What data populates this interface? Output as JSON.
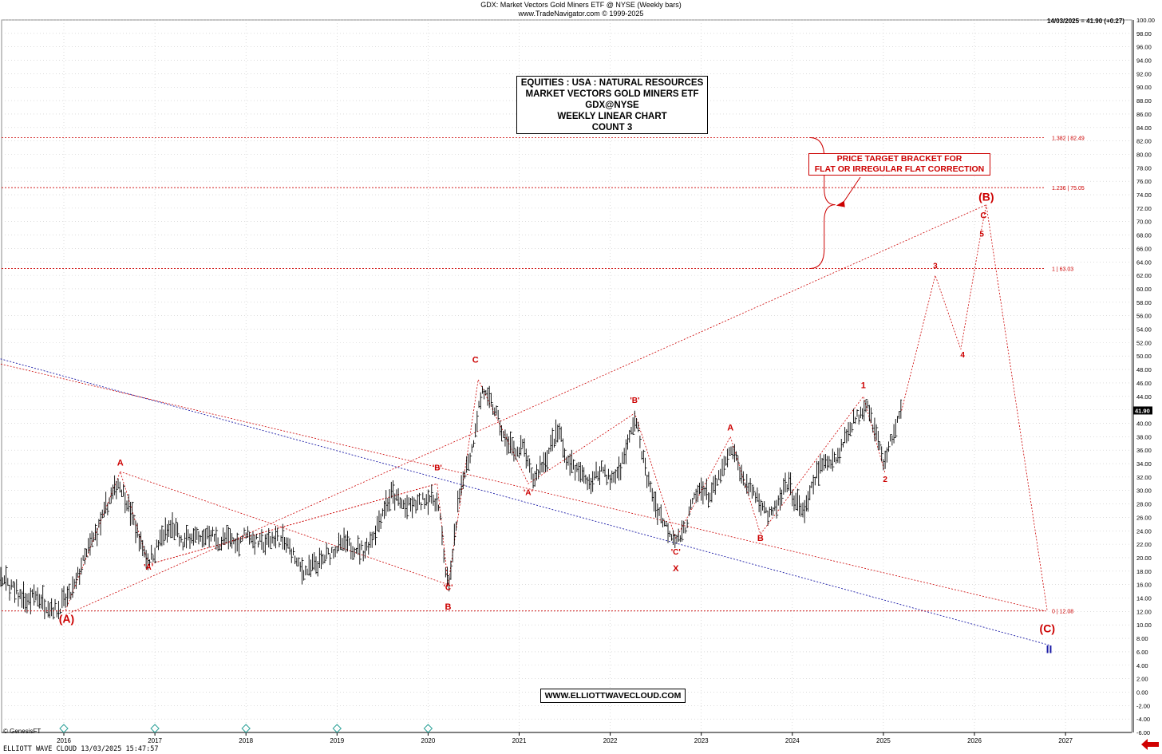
{
  "header": {
    "title": "GDX:  Market Vectors Gold Miners ETF @ NYSE  (Weekly bars)",
    "subtitle": "www.TradeNavigator.com © 1999-2025",
    "last_quote": "14/03/2025 = 41.90 (+0.27)"
  },
  "info_box": {
    "line1": "EQUITIES : USA : NATURAL RESOURCES",
    "line2": "MARKET VECTORS GOLD MINERS ETF",
    "line3": "GDX@NYSE",
    "line4": "WEEKLY LINEAR CHART",
    "line5": "COUNT 3"
  },
  "target_box": {
    "line1": "PRICE TARGET BRACKET FOR",
    "line2": "FLAT OR IRREGULAR FLAT CORRECTION"
  },
  "url_box": "WWW.ELLIOTTWAVECLOUD.COM",
  "footer": "ELLIOTT WAVE CLOUD   13/03/2025 15:47:57",
  "genesis": "© GenesisFT",
  "colors": {
    "red": "#cc0000",
    "blue": "#1a1aa6",
    "bars": "#000000",
    "grid": "#c8c8c8"
  },
  "chart_data": {
    "type": "ohlc",
    "yrange": [
      -6,
      100
    ],
    "yticks": [
      "100.00",
      "98.00",
      "96.00",
      "94.00",
      "92.00",
      "90.00",
      "88.00",
      "86.00",
      "84.00",
      "82.00",
      "80.00",
      "78.00",
      "76.00",
      "74.00",
      "72.00",
      "70.00",
      "68.00",
      "66.00",
      "64.00",
      "62.00",
      "60.00",
      "58.00",
      "56.00",
      "54.00",
      "52.00",
      "50.00",
      "48.00",
      "46.00",
      "44.00",
      "42.00",
      "40.00",
      "38.00",
      "36.00",
      "34.00",
      "32.00",
      "30.00",
      "28.00",
      "26.00",
      "24.00",
      "22.00",
      "20.00",
      "18.00",
      "16.00",
      "14.00",
      "12.00",
      "10.00",
      "8.00",
      "6.00",
      "4.00",
      "2.00",
      "0.00",
      "-2.00",
      "-4.00",
      "-6.00"
    ],
    "xticks": [
      "2016",
      "2017",
      "2018",
      "2019",
      "2020",
      "2021",
      "2022",
      "2023",
      "2024",
      "2025",
      "2026",
      "2027"
    ],
    "last_price_label": "41.90",
    "last_price": 41.9,
    "price_path": [
      [
        2015.0,
        20.5
      ],
      [
        2015.15,
        19.0
      ],
      [
        2015.35,
        16.5
      ],
      [
        2015.6,
        13.2
      ],
      [
        2015.7,
        14.5
      ],
      [
        2015.8,
        13.0
      ],
      [
        2015.93,
        12.2
      ],
      [
        2016.0,
        13.5
      ],
      [
        2016.1,
        15.0
      ],
      [
        2016.2,
        19.0
      ],
      [
        2016.3,
        22.0
      ],
      [
        2016.4,
        25.0
      ],
      [
        2016.5,
        28.5
      ],
      [
        2016.6,
        31.3
      ],
      [
        2016.68,
        29.0
      ],
      [
        2016.75,
        26.0
      ],
      [
        2016.85,
        22.0
      ],
      [
        2016.93,
        19.5
      ],
      [
        2017.0,
        21.0
      ],
      [
        2017.1,
        23.5
      ],
      [
        2017.2,
        24.5
      ],
      [
        2017.3,
        22.0
      ],
      [
        2017.4,
        23.5
      ],
      [
        2017.5,
        22.5
      ],
      [
        2017.6,
        24.0
      ],
      [
        2017.7,
        22.0
      ],
      [
        2017.8,
        23.0
      ],
      [
        2017.9,
        22.0
      ],
      [
        2018.0,
        23.8
      ],
      [
        2018.1,
        22.5
      ],
      [
        2018.2,
        22.0
      ],
      [
        2018.3,
        23.0
      ],
      [
        2018.4,
        22.5
      ],
      [
        2018.5,
        21.0
      ],
      [
        2018.58,
        18.5
      ],
      [
        2018.65,
        18.0
      ],
      [
        2018.8,
        19.0
      ],
      [
        2018.95,
        21.0
      ],
      [
        2019.05,
        22.0
      ],
      [
        2019.2,
        21.5
      ],
      [
        2019.3,
        21.0
      ],
      [
        2019.4,
        23.5
      ],
      [
        2019.5,
        27.0
      ],
      [
        2019.6,
        29.5
      ],
      [
        2019.7,
        28.0
      ],
      [
        2019.8,
        27.5
      ],
      [
        2019.9,
        28.0
      ],
      [
        2020.0,
        29.0
      ],
      [
        2020.1,
        28.5
      ],
      [
        2020.15,
        24.0
      ],
      [
        2020.2,
        17.0
      ],
      [
        2020.23,
        16.2
      ],
      [
        2020.27,
        20.0
      ],
      [
        2020.32,
        27.0
      ],
      [
        2020.4,
        33.0
      ],
      [
        2020.48,
        36.0
      ],
      [
        2020.55,
        42.0
      ],
      [
        2020.6,
        45.0
      ],
      [
        2020.68,
        43.0
      ],
      [
        2020.75,
        41.5
      ],
      [
        2020.82,
        38.0
      ],
      [
        2020.9,
        36.5
      ],
      [
        2021.0,
        35.5
      ],
      [
        2021.05,
        36.8
      ],
      [
        2021.1,
        33.5
      ],
      [
        2021.15,
        31.5
      ],
      [
        2021.2,
        32.5
      ],
      [
        2021.3,
        35.0
      ],
      [
        2021.38,
        37.5
      ],
      [
        2021.45,
        38.8
      ],
      [
        2021.5,
        35.0
      ],
      [
        2021.6,
        33.5
      ],
      [
        2021.7,
        32.0
      ],
      [
        2021.8,
        31.0
      ],
      [
        2021.9,
        33.5
      ],
      [
        2022.0,
        31.5
      ],
      [
        2022.1,
        33.0
      ],
      [
        2022.2,
        37.0
      ],
      [
        2022.27,
        40.8
      ],
      [
        2022.32,
        38.0
      ],
      [
        2022.4,
        32.0
      ],
      [
        2022.5,
        28.0
      ],
      [
        2022.6,
        25.0
      ],
      [
        2022.7,
        23.0
      ],
      [
        2022.75,
        22.8
      ],
      [
        2022.82,
        24.5
      ],
      [
        2022.9,
        28.0
      ],
      [
        2023.0,
        30.5
      ],
      [
        2023.1,
        29.0
      ],
      [
        2023.2,
        32.0
      ],
      [
        2023.3,
        35.0
      ],
      [
        2023.35,
        36.0
      ],
      [
        2023.45,
        32.0
      ],
      [
        2023.55,
        30.0
      ],
      [
        2023.65,
        28.5
      ],
      [
        2023.75,
        26.0
      ],
      [
        2023.85,
        28.0
      ],
      [
        2023.95,
        31.0
      ],
      [
        2024.05,
        28.0
      ],
      [
        2024.15,
        27.0
      ],
      [
        2024.22,
        30.5
      ],
      [
        2024.3,
        33.5
      ],
      [
        2024.4,
        34.5
      ],
      [
        2024.5,
        35.0
      ],
      [
        2024.6,
        38.5
      ],
      [
        2024.65,
        40.0
      ],
      [
        2024.72,
        41.0
      ],
      [
        2024.78,
        42.5
      ],
      [
        2024.82,
        43.5
      ],
      [
        2024.88,
        40.0
      ],
      [
        2024.95,
        37.0
      ],
      [
        2025.0,
        34.0
      ],
      [
        2025.05,
        36.0
      ],
      [
        2025.12,
        39.0
      ],
      [
        2025.2,
        41.9
      ]
    ],
    "fib_levels": [
      {
        "label": "1.382 | 82.49",
        "value": 82.49
      },
      {
        "label": "1.236 | 75.05",
        "value": 75.05
      },
      {
        "label": "1 | 63.03",
        "value": 63.03
      },
      {
        "label": "0 | 12.08",
        "value": 12.08
      }
    ],
    "wave_labels": [
      {
        "text": "(A)",
        "x": 2016.03,
        "y": 10.3,
        "size": 14
      },
      {
        "text": "A",
        "x": 2016.62,
        "y": 33.7,
        "size": 11
      },
      {
        "text": "'A'",
        "x": 2016.93,
        "y": 18.2,
        "size": 10
      },
      {
        "text": "'B'",
        "x": 2020.1,
        "y": 33.0,
        "size": 10
      },
      {
        "text": "'C'",
        "x": 2020.22,
        "y": 15.2,
        "size": 10
      },
      {
        "text": "B",
        "x": 2020.22,
        "y": 12.3,
        "size": 11
      },
      {
        "text": "C",
        "x": 2020.52,
        "y": 49.0,
        "size": 11
      },
      {
        "text": "'A'",
        "x": 2021.1,
        "y": 29.3,
        "size": 10
      },
      {
        "text": "'B'",
        "x": 2022.27,
        "y": 43.0,
        "size": 10
      },
      {
        "text": "'C'",
        "x": 2022.72,
        "y": 20.5,
        "size": 10
      },
      {
        "text": "X",
        "x": 2022.72,
        "y": 18.0,
        "size": 11
      },
      {
        "text": "A",
        "x": 2023.32,
        "y": 38.9,
        "size": 11
      },
      {
        "text": "B",
        "x": 2023.65,
        "y": 22.5,
        "size": 11
      },
      {
        "text": "1",
        "x": 2024.78,
        "y": 45.2,
        "size": 11
      },
      {
        "text": "2",
        "x": 2025.02,
        "y": 31.3,
        "size": 10
      },
      {
        "text": "3",
        "x": 2025.57,
        "y": 63.0,
        "size": 10
      },
      {
        "text": "4",
        "x": 2025.87,
        "y": 49.8,
        "size": 10
      },
      {
        "text": "5",
        "x": 2026.08,
        "y": 67.8,
        "size": 10
      },
      {
        "text": "C",
        "x": 2026.1,
        "y": 70.5,
        "size": 11
      },
      {
        "text": "(B)",
        "x": 2026.13,
        "y": 73.1,
        "size": 14
      },
      {
        "text": "(C)",
        "x": 2026.8,
        "y": 8.9,
        "size": 14
      },
      {
        "text": "II",
        "x": 2026.82,
        "y": 5.8,
        "size": 14,
        "color": "blue"
      }
    ],
    "projection_path": [
      [
        2025.2,
        41.9
      ],
      [
        2025.57,
        62.0
      ],
      [
        2025.85,
        51.0
      ],
      [
        2026.08,
        69.0
      ],
      [
        2026.13,
        72.5
      ],
      [
        2026.8,
        12.0
      ]
    ]
  }
}
